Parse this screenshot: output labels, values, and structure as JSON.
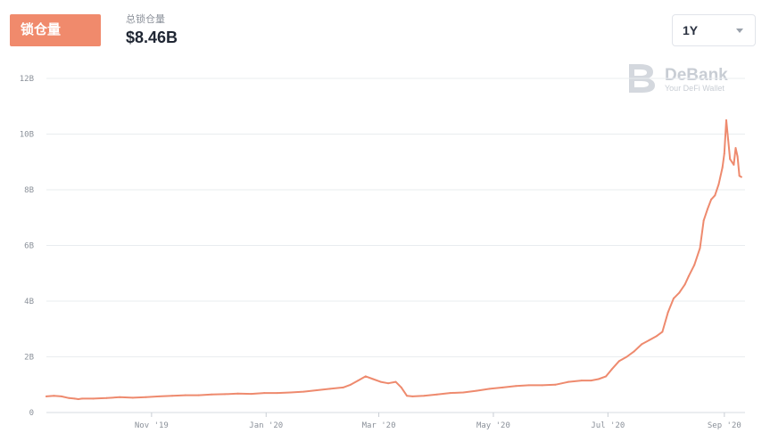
{
  "header": {
    "tab_label": "锁仓量",
    "summary_label": "总锁仓量",
    "summary_value": "$8.46B",
    "range_value": "1Y"
  },
  "watermark": {
    "brand": "DeBank",
    "tagline": "Your DeFi Wallet"
  },
  "colors": {
    "accent": "#F08A6C",
    "line": "#EE8A6E",
    "grid": "#E9ECEF"
  },
  "chart_data": {
    "type": "line",
    "xlabel": "",
    "ylabel": "",
    "ylim": [
      0,
      12
    ],
    "yticks": [
      {
        "value": 0,
        "label": "0"
      },
      {
        "value": 2,
        "label": "2B"
      },
      {
        "value": 4,
        "label": "4B"
      },
      {
        "value": 6,
        "label": "6B"
      },
      {
        "value": 8,
        "label": "8B"
      },
      {
        "value": 10,
        "label": "10B"
      },
      {
        "value": 12,
        "label": "12B"
      }
    ],
    "xlim": [
      "2019-09-06",
      "2020-09-12"
    ],
    "xticks": [
      {
        "date": "2019-11-01",
        "label": "Nov '19"
      },
      {
        "date": "2020-01-01",
        "label": "Jan '20"
      },
      {
        "date": "2020-03-01",
        "label": "Mar '20"
      },
      {
        "date": "2020-05-01",
        "label": "May '20"
      },
      {
        "date": "2020-07-01",
        "label": "Jul '20"
      },
      {
        "date": "2020-09-01",
        "label": "Sep '20"
      }
    ],
    "grid": true,
    "series": [
      {
        "name": "",
        "x": [
          "2019-09-06",
          "2019-09-10",
          "2019-09-14",
          "2019-09-18",
          "2019-09-21",
          "2019-09-23",
          "2019-09-25",
          "2019-10-01",
          "2019-10-08",
          "2019-10-15",
          "2019-10-22",
          "2019-10-29",
          "2019-11-05",
          "2019-11-12",
          "2019-11-19",
          "2019-11-26",
          "2019-12-03",
          "2019-12-10",
          "2019-12-17",
          "2019-12-24",
          "2019-12-31",
          "2020-01-07",
          "2020-01-14",
          "2020-01-21",
          "2020-01-28",
          "2020-02-04",
          "2020-02-11",
          "2020-02-15",
          "2020-02-19",
          "2020-02-23",
          "2020-02-27",
          "2020-03-02",
          "2020-03-06",
          "2020-03-10",
          "2020-03-13",
          "2020-03-16",
          "2020-03-19",
          "2020-03-25",
          "2020-04-01",
          "2020-04-08",
          "2020-04-15",
          "2020-04-22",
          "2020-04-29",
          "2020-05-06",
          "2020-05-13",
          "2020-05-20",
          "2020-05-27",
          "2020-06-03",
          "2020-06-10",
          "2020-06-17",
          "2020-06-22",
          "2020-06-26",
          "2020-06-30",
          "2020-07-03",
          "2020-07-07",
          "2020-07-11",
          "2020-07-15",
          "2020-07-19",
          "2020-07-23",
          "2020-07-27",
          "2020-07-30",
          "2020-08-02",
          "2020-08-05",
          "2020-08-08",
          "2020-08-11",
          "2020-08-13",
          "2020-08-16",
          "2020-08-19",
          "2020-08-21",
          "2020-08-23",
          "2020-08-25",
          "2020-08-27",
          "2020-08-29",
          "2020-08-31",
          "2020-09-01",
          "2020-09-02",
          "2020-09-03",
          "2020-09-04",
          "2020-09-06",
          "2020-09-07",
          "2020-09-08",
          "2020-09-09",
          "2020-09-10"
        ],
        "values": [
          0.58,
          0.6,
          0.58,
          0.52,
          0.5,
          0.48,
          0.5,
          0.5,
          0.52,
          0.55,
          0.53,
          0.55,
          0.58,
          0.6,
          0.62,
          0.62,
          0.65,
          0.66,
          0.68,
          0.67,
          0.7,
          0.7,
          0.72,
          0.75,
          0.8,
          0.85,
          0.9,
          1.0,
          1.15,
          1.3,
          1.2,
          1.1,
          1.05,
          1.1,
          0.9,
          0.6,
          0.58,
          0.6,
          0.65,
          0.7,
          0.72,
          0.78,
          0.85,
          0.9,
          0.95,
          0.98,
          0.98,
          1.0,
          1.1,
          1.15,
          1.15,
          1.2,
          1.3,
          1.55,
          1.85,
          2.0,
          2.2,
          2.45,
          2.6,
          2.75,
          2.9,
          3.6,
          4.1,
          4.3,
          4.6,
          4.9,
          5.3,
          5.9,
          6.9,
          7.3,
          7.65,
          7.8,
          8.2,
          8.8,
          9.3,
          10.5,
          9.8,
          9.1,
          8.9,
          9.5,
          9.2,
          8.5,
          8.46
        ]
      }
    ]
  }
}
